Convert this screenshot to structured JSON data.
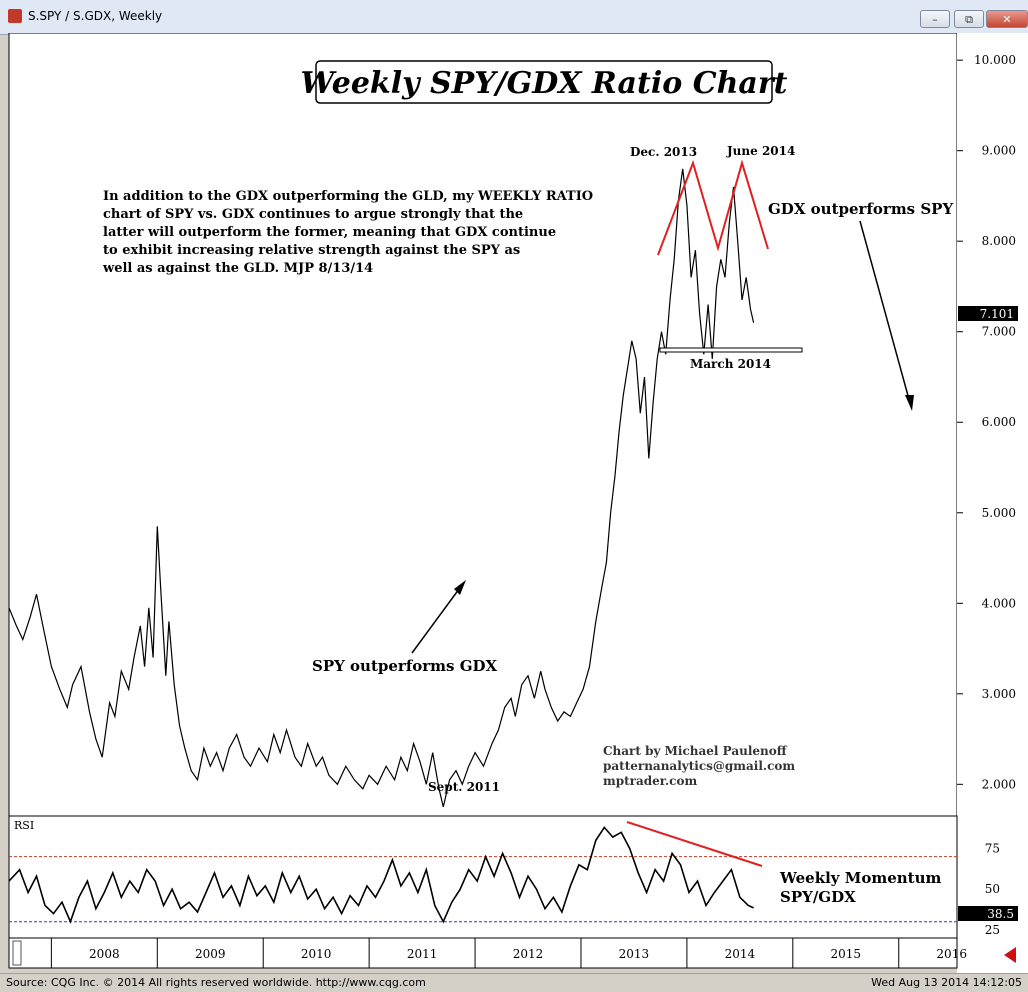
{
  "window": {
    "title": "S.SPY / S.GDX, Weekly",
    "minimize_label": "–",
    "restore_label": "⧉",
    "close_label": "✕"
  },
  "status": {
    "source": "Source: CQG Inc. © 2014 All rights reserved worldwide. http://www.cqg.com",
    "timestamp": "Wed Aug 13 2014 14:12:05"
  },
  "colors": {
    "annotation_red": "#e02020",
    "line": "#000000",
    "rsi_dash": "#c0392b"
  },
  "chart_data": [
    {
      "type": "line",
      "title": "Weekly SPY/GDX Ratio Chart",
      "x_ticks": [
        "2008",
        "2009",
        "2010",
        "2011",
        "2012",
        "2013",
        "2014",
        "2015",
        "2016"
      ],
      "y_ticks": [
        "10.000",
        "9.000",
        "8.000",
        "7.000",
        "6.000",
        "5.000",
        "4.000",
        "3.000",
        "2.000"
      ],
      "ylim": [
        1.65,
        10.3
      ],
      "xlim": [
        2007.6,
        2016.55
      ],
      "last_value": "7.101",
      "points": [
        [
          2007.6,
          3.95
        ],
        [
          2007.67,
          3.75
        ],
        [
          2007.73,
          3.6
        ],
        [
          2007.8,
          3.85
        ],
        [
          2007.86,
          4.1
        ],
        [
          2007.92,
          3.75
        ],
        [
          2008.0,
          3.3
        ],
        [
          2008.08,
          3.05
        ],
        [
          2008.15,
          2.85
        ],
        [
          2008.2,
          3.1
        ],
        [
          2008.28,
          3.3
        ],
        [
          2008.36,
          2.8
        ],
        [
          2008.42,
          2.5
        ],
        [
          2008.48,
          2.3
        ],
        [
          2008.55,
          2.9
        ],
        [
          2008.6,
          2.75
        ],
        [
          2008.66,
          3.25
        ],
        [
          2008.73,
          3.05
        ],
        [
          2008.78,
          3.4
        ],
        [
          2008.84,
          3.75
        ],
        [
          2008.88,
          3.3
        ],
        [
          2008.92,
          3.95
        ],
        [
          2008.96,
          3.4
        ],
        [
          2009.0,
          4.85
        ],
        [
          2009.03,
          4.2
        ],
        [
          2009.08,
          3.2
        ],
        [
          2009.11,
          3.8
        ],
        [
          2009.16,
          3.1
        ],
        [
          2009.21,
          2.65
        ],
        [
          2009.26,
          2.4
        ],
        [
          2009.32,
          2.15
        ],
        [
          2009.38,
          2.05
        ],
        [
          2009.44,
          2.4
        ],
        [
          2009.5,
          2.2
        ],
        [
          2009.56,
          2.35
        ],
        [
          2009.62,
          2.15
        ],
        [
          2009.68,
          2.4
        ],
        [
          2009.75,
          2.55
        ],
        [
          2009.82,
          2.3
        ],
        [
          2009.88,
          2.2
        ],
        [
          2009.96,
          2.4
        ],
        [
          2010.04,
          2.25
        ],
        [
          2010.1,
          2.55
        ],
        [
          2010.16,
          2.35
        ],
        [
          2010.22,
          2.6
        ],
        [
          2010.3,
          2.3
        ],
        [
          2010.36,
          2.2
        ],
        [
          2010.42,
          2.45
        ],
        [
          2010.5,
          2.2
        ],
        [
          2010.56,
          2.3
        ],
        [
          2010.62,
          2.1
        ],
        [
          2010.7,
          2.0
        ],
        [
          2010.78,
          2.2
        ],
        [
          2010.86,
          2.05
        ],
        [
          2010.94,
          1.95
        ],
        [
          2011.0,
          2.1
        ],
        [
          2011.08,
          2.0
        ],
        [
          2011.16,
          2.2
        ],
        [
          2011.24,
          2.05
        ],
        [
          2011.3,
          2.3
        ],
        [
          2011.36,
          2.15
        ],
        [
          2011.42,
          2.45
        ],
        [
          2011.48,
          2.25
        ],
        [
          2011.54,
          2.0
        ],
        [
          2011.6,
          2.35
        ],
        [
          2011.66,
          1.95
        ],
        [
          2011.7,
          1.75
        ],
        [
          2011.76,
          2.05
        ],
        [
          2011.82,
          2.15
        ],
        [
          2011.88,
          2.0
        ],
        [
          2011.94,
          2.2
        ],
        [
          2012.0,
          2.35
        ],
        [
          2012.08,
          2.2
        ],
        [
          2012.16,
          2.45
        ],
        [
          2012.22,
          2.6
        ],
        [
          2012.28,
          2.85
        ],
        [
          2012.34,
          2.95
        ],
        [
          2012.38,
          2.75
        ],
        [
          2012.44,
          3.1
        ],
        [
          2012.5,
          3.2
        ],
        [
          2012.56,
          2.95
        ],
        [
          2012.62,
          3.25
        ],
        [
          2012.66,
          3.05
        ],
        [
          2012.72,
          2.85
        ],
        [
          2012.78,
          2.7
        ],
        [
          2012.84,
          2.8
        ],
        [
          2012.9,
          2.75
        ],
        [
          2012.96,
          2.9
        ],
        [
          2013.02,
          3.05
        ],
        [
          2013.08,
          3.3
        ],
        [
          2013.14,
          3.8
        ],
        [
          2013.2,
          4.2
        ],
        [
          2013.24,
          4.45
        ],
        [
          2013.28,
          5.0
        ],
        [
          2013.32,
          5.4
        ],
        [
          2013.36,
          5.9
        ],
        [
          2013.4,
          6.3
        ],
        [
          2013.44,
          6.6
        ],
        [
          2013.48,
          6.9
        ],
        [
          2013.52,
          6.7
        ],
        [
          2013.56,
          6.1
        ],
        [
          2013.6,
          6.5
        ],
        [
          2013.64,
          5.6
        ],
        [
          2013.68,
          6.2
        ],
        [
          2013.72,
          6.7
        ],
        [
          2013.76,
          7.0
        ],
        [
          2013.8,
          6.75
        ],
        [
          2013.84,
          7.35
        ],
        [
          2013.88,
          7.8
        ],
        [
          2013.92,
          8.45
        ],
        [
          2013.96,
          8.8
        ],
        [
          2014.0,
          8.4
        ],
        [
          2014.04,
          7.6
        ],
        [
          2014.08,
          7.9
        ],
        [
          2014.12,
          7.2
        ],
        [
          2014.16,
          6.75
        ],
        [
          2014.2,
          7.3
        ],
        [
          2014.24,
          6.7
        ],
        [
          2014.28,
          7.5
        ],
        [
          2014.32,
          7.8
        ],
        [
          2014.36,
          7.6
        ],
        [
          2014.4,
          8.2
        ],
        [
          2014.44,
          8.6
        ],
        [
          2014.48,
          8.0
        ],
        [
          2014.52,
          7.35
        ],
        [
          2014.56,
          7.6
        ],
        [
          2014.6,
          7.25
        ],
        [
          2014.63,
          7.1
        ]
      ],
      "annotations": {
        "description": "In addition to the GDX outperforming the GLD, my WEEKLY RATIO chart of SPY vs. GDX continues to argue strongly that the latter will outperform the former, meaning that GDX continue to exhibit increasing relative strength against the SPY as well as against the GLD. MJP 8/13/14",
        "spy_outperforms": "SPY outperforms GDX",
        "gdx_outperforms": "GDX outperforms SPY",
        "sept_2011": "Sept. 2011",
        "dec_2013": "Dec. 2013",
        "june_2014": "June 2014",
        "march_2014": "March 2014",
        "credit_1": "Chart by Michael Paulenoff",
        "credit_2": "patternanalytics@gmail.com",
        "credit_3": "mptrader.com"
      }
    },
    {
      "type": "line",
      "title": "RSI",
      "y_ticks": [
        "75",
        "50",
        "25"
      ],
      "ylim": [
        20,
        95
      ],
      "guide_lines": [
        70,
        30
      ],
      "last_value": "38.5",
      "label": "Weekly Momentum SPY/GDX",
      "points": [
        [
          2007.6,
          55
        ],
        [
          2007.7,
          62
        ],
        [
          2007.78,
          48
        ],
        [
          2007.86,
          58
        ],
        [
          2007.94,
          40
        ],
        [
          2008.02,
          35
        ],
        [
          2008.1,
          42
        ],
        [
          2008.18,
          30
        ],
        [
          2008.26,
          45
        ],
        [
          2008.34,
          55
        ],
        [
          2008.42,
          38
        ],
        [
          2008.5,
          48
        ],
        [
          2008.58,
          60
        ],
        [
          2008.66,
          45
        ],
        [
          2008.74,
          55
        ],
        [
          2008.82,
          48
        ],
        [
          2008.9,
          62
        ],
        [
          2008.98,
          55
        ],
        [
          2009.06,
          40
        ],
        [
          2009.14,
          50
        ],
        [
          2009.22,
          38
        ],
        [
          2009.3,
          42
        ],
        [
          2009.38,
          36
        ],
        [
          2009.46,
          48
        ],
        [
          2009.54,
          60
        ],
        [
          2009.62,
          45
        ],
        [
          2009.7,
          52
        ],
        [
          2009.78,
          40
        ],
        [
          2009.86,
          58
        ],
        [
          2009.94,
          46
        ],
        [
          2010.02,
          52
        ],
        [
          2010.1,
          42
        ],
        [
          2010.18,
          60
        ],
        [
          2010.26,
          48
        ],
        [
          2010.34,
          58
        ],
        [
          2010.42,
          44
        ],
        [
          2010.5,
          50
        ],
        [
          2010.58,
          38
        ],
        [
          2010.66,
          45
        ],
        [
          2010.74,
          35
        ],
        [
          2010.82,
          46
        ],
        [
          2010.9,
          40
        ],
        [
          2010.98,
          52
        ],
        [
          2011.06,
          45
        ],
        [
          2011.14,
          55
        ],
        [
          2011.22,
          68
        ],
        [
          2011.3,
          52
        ],
        [
          2011.38,
          60
        ],
        [
          2011.46,
          48
        ],
        [
          2011.54,
          62
        ],
        [
          2011.62,
          40
        ],
        [
          2011.7,
          30
        ],
        [
          2011.78,
          42
        ],
        [
          2011.86,
          50
        ],
        [
          2011.94,
          62
        ],
        [
          2012.02,
          55
        ],
        [
          2012.1,
          70
        ],
        [
          2012.18,
          58
        ],
        [
          2012.26,
          72
        ],
        [
          2012.34,
          60
        ],
        [
          2012.42,
          45
        ],
        [
          2012.5,
          58
        ],
        [
          2012.58,
          50
        ],
        [
          2012.66,
          38
        ],
        [
          2012.74,
          45
        ],
        [
          2012.82,
          36
        ],
        [
          2012.9,
          52
        ],
        [
          2012.98,
          65
        ],
        [
          2013.06,
          62
        ],
        [
          2013.14,
          80
        ],
        [
          2013.22,
          88
        ],
        [
          2013.3,
          82
        ],
        [
          2013.38,
          85
        ],
        [
          2013.46,
          75
        ],
        [
          2013.54,
          60
        ],
        [
          2013.62,
          48
        ],
        [
          2013.7,
          62
        ],
        [
          2013.78,
          55
        ],
        [
          2013.86,
          72
        ],
        [
          2013.94,
          65
        ],
        [
          2014.02,
          48
        ],
        [
          2014.1,
          55
        ],
        [
          2014.18,
          40
        ],
        [
          2014.26,
          48
        ],
        [
          2014.34,
          55
        ],
        [
          2014.42,
          62
        ],
        [
          2014.5,
          45
        ],
        [
          2014.58,
          40
        ],
        [
          2014.63,
          38.5
        ]
      ]
    }
  ]
}
